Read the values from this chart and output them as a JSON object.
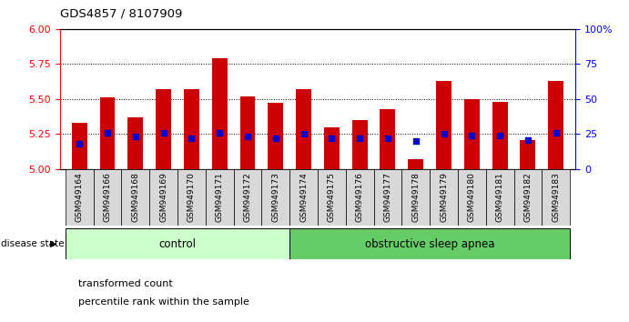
{
  "title": "GDS4857 / 8107909",
  "samples": [
    "GSM949164",
    "GSM949166",
    "GSM949168",
    "GSM949169",
    "GSM949170",
    "GSM949171",
    "GSM949172",
    "GSM949173",
    "GSM949174",
    "GSM949175",
    "GSM949176",
    "GSM949177",
    "GSM949178",
    "GSM949179",
    "GSM949180",
    "GSM949181",
    "GSM949182",
    "GSM949183"
  ],
  "bar_values": [
    5.33,
    5.51,
    5.37,
    5.57,
    5.57,
    5.79,
    5.52,
    5.47,
    5.57,
    5.3,
    5.35,
    5.43,
    5.07,
    5.63,
    5.5,
    5.48,
    5.21,
    5.63
  ],
  "percentile_values": [
    18,
    26,
    23,
    26,
    22,
    26,
    23,
    22,
    25,
    22,
    22,
    22,
    20,
    25,
    24,
    24,
    21,
    26
  ],
  "bar_color": "#cc0000",
  "percentile_color": "#0000cc",
  "ylim_left": [
    5.0,
    6.0
  ],
  "ylim_right": [
    0,
    100
  ],
  "yticks_left": [
    5.0,
    5.25,
    5.5,
    5.75,
    6.0
  ],
  "yticks_right": [
    0,
    25,
    50,
    75,
    100
  ],
  "hgrid_lines": [
    5.25,
    5.5,
    5.75
  ],
  "n_control": 8,
  "control_label": "control",
  "osa_label": "obstructive sleep apnea",
  "control_color": "#ccffcc",
  "osa_color": "#66cc66",
  "disease_state_label": "disease state",
  "legend_bar_label": "transformed count",
  "legend_pct_label": "percentile rank within the sample",
  "bar_width": 0.55
}
